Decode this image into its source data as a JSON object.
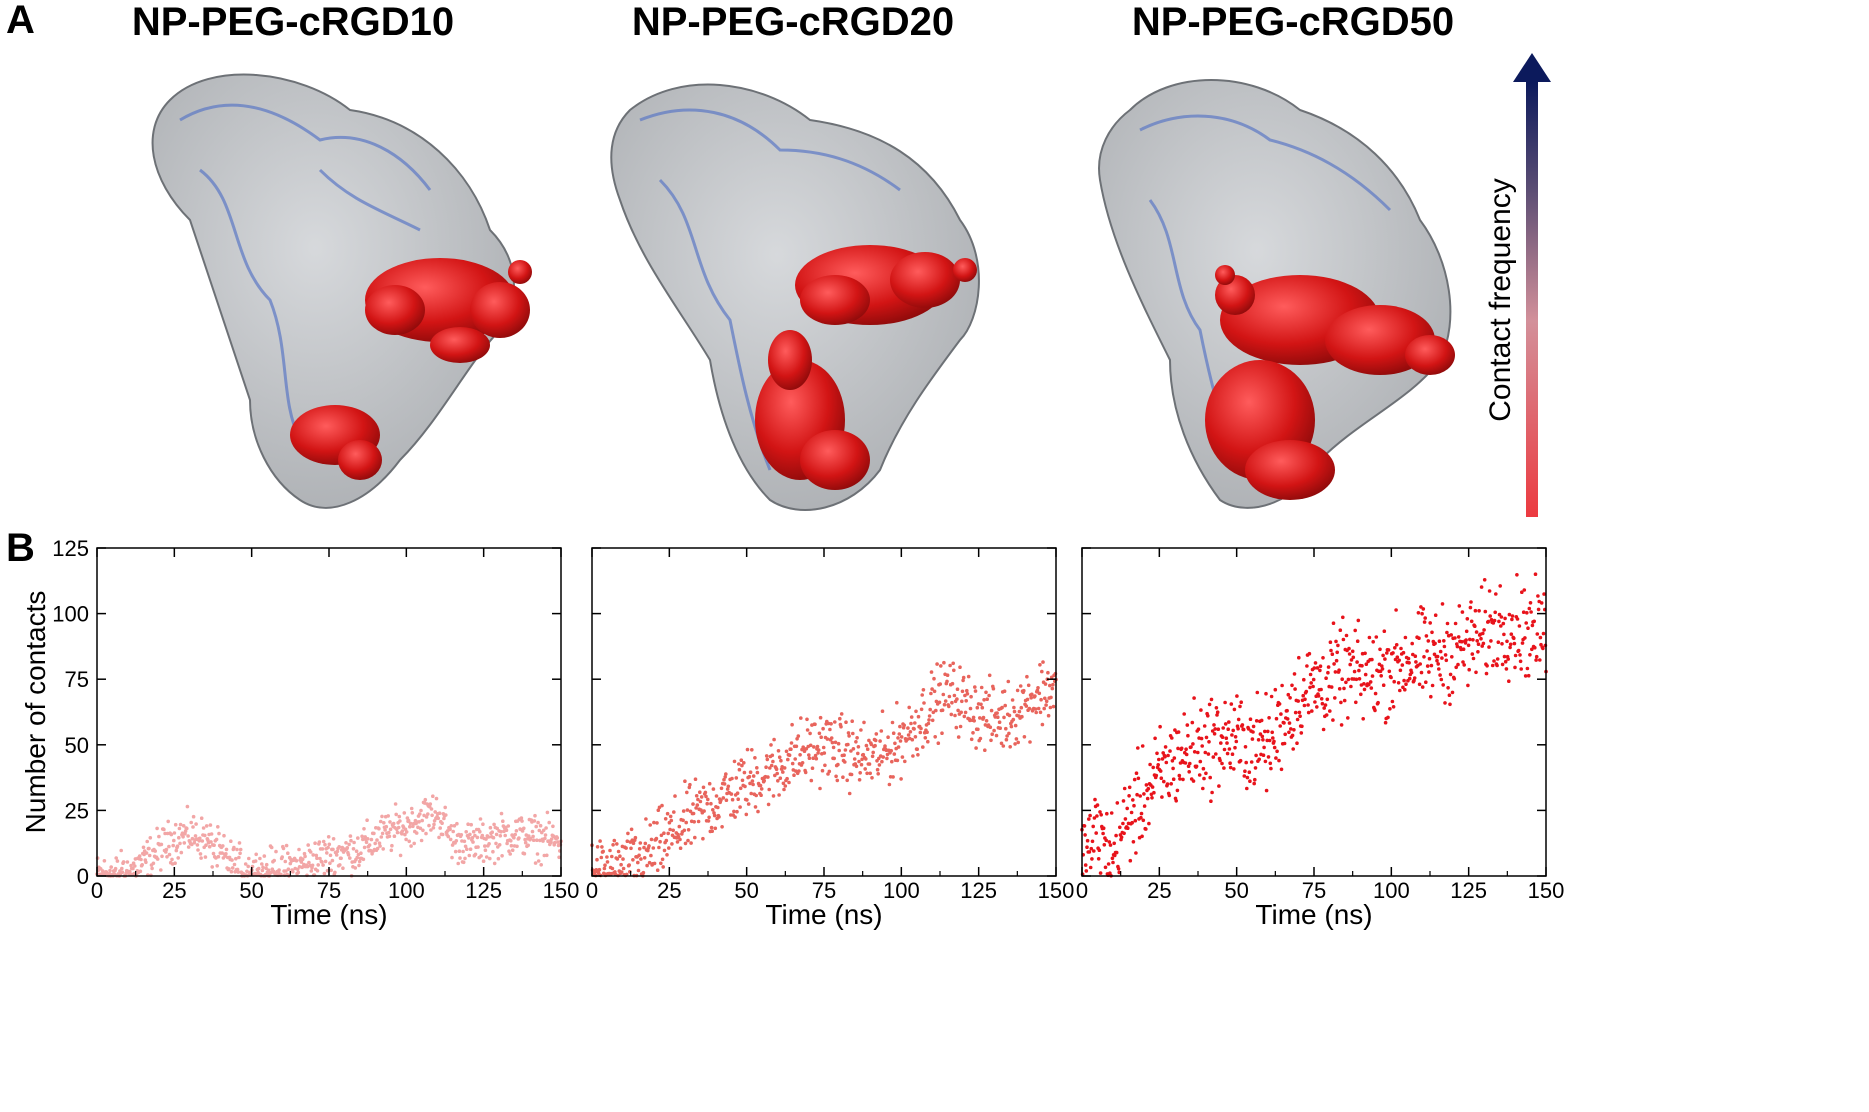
{
  "panel_a": {
    "letter": "A",
    "structures": [
      {
        "title": "NP-PEG-cRGD10"
      },
      {
        "title": "NP-PEG-cRGD20"
      },
      {
        "title": "NP-PEG-cRGD50"
      }
    ],
    "colorbar": {
      "label": "Contact frequency",
      "low_color": "#e8303a",
      "high_color": "#0c1a5c"
    },
    "colors": {
      "surface": "#9aa0a6",
      "ribbon": "#5b78c4",
      "contact": "#d51a1a"
    }
  },
  "panel_b": {
    "letter": "B"
  },
  "chart_data": [
    {
      "type": "scatter",
      "xlabel": "Time (ns)",
      "ylabel": "Number of contacts",
      "xlim": [
        0,
        150
      ],
      "ylim": [
        0,
        125
      ],
      "xticks": [
        "0",
        "25",
        "50",
        "75",
        "100",
        "125",
        "150"
      ],
      "yticks": [
        "0",
        "25",
        "50",
        "75",
        "100",
        "125"
      ],
      "color": "#f2a6a6",
      "trend": {
        "x": [
          0,
          10,
          15,
          20,
          25,
          30,
          35,
          40,
          45,
          50,
          55,
          60,
          65,
          70,
          75,
          80,
          85,
          90,
          95,
          100,
          105,
          110,
          115,
          120,
          125,
          130,
          135,
          140,
          145,
          150
        ],
        "y": [
          0,
          1,
          5,
          10,
          14,
          16,
          14,
          8,
          4,
          2,
          2,
          3,
          4,
          6,
          8,
          9,
          10,
          14,
          17,
          19,
          22,
          24,
          14,
          12,
          13,
          15,
          16,
          15,
          14,
          13
        ]
      }
    },
    {
      "type": "scatter",
      "xlabel": "Time (ns)",
      "ylabel": "",
      "xlim": [
        0,
        150
      ],
      "ylim": [
        0,
        125
      ],
      "xticks": [
        "0",
        "25",
        "50",
        "75",
        "100",
        "125",
        "150"
      ],
      "yticks": [],
      "color": "#e8645c",
      "trend": {
        "x": [
          0,
          5,
          10,
          15,
          20,
          25,
          30,
          35,
          40,
          45,
          50,
          55,
          60,
          65,
          70,
          75,
          80,
          85,
          90,
          95,
          100,
          105,
          110,
          115,
          120,
          125,
          130,
          135,
          140,
          145,
          150
        ],
        "y": [
          1,
          2,
          3,
          6,
          10,
          15,
          20,
          24,
          28,
          32,
          35,
          38,
          41,
          45,
          48,
          50,
          48,
          46,
          45,
          47,
          52,
          58,
          65,
          70,
          66,
          62,
          60,
          61,
          66,
          70,
          72
        ]
      }
    },
    {
      "type": "scatter",
      "xlabel": "Time (ns)",
      "ylabel": "",
      "xlim": [
        0,
        150
      ],
      "ylim": [
        0,
        125
      ],
      "xticks": [
        "0",
        "25",
        "50",
        "75",
        "100",
        "125",
        "150"
      ],
      "yticks": [],
      "color": "#e8131b",
      "trend": {
        "x": [
          0,
          3,
          5,
          8,
          10,
          12,
          15,
          20,
          25,
          30,
          35,
          40,
          45,
          50,
          55,
          60,
          65,
          70,
          75,
          80,
          85,
          90,
          95,
          100,
          105,
          110,
          115,
          120,
          125,
          130,
          135,
          140,
          145,
          150
        ],
        "y": [
          6,
          12,
          18,
          9,
          8,
          14,
          22,
          30,
          38,
          44,
          48,
          50,
          52,
          52,
          50,
          50,
          60,
          68,
          72,
          74,
          78,
          76,
          77,
          80,
          82,
          83,
          84,
          86,
          88,
          92,
          96,
          95,
          93,
          92
        ]
      }
    }
  ]
}
